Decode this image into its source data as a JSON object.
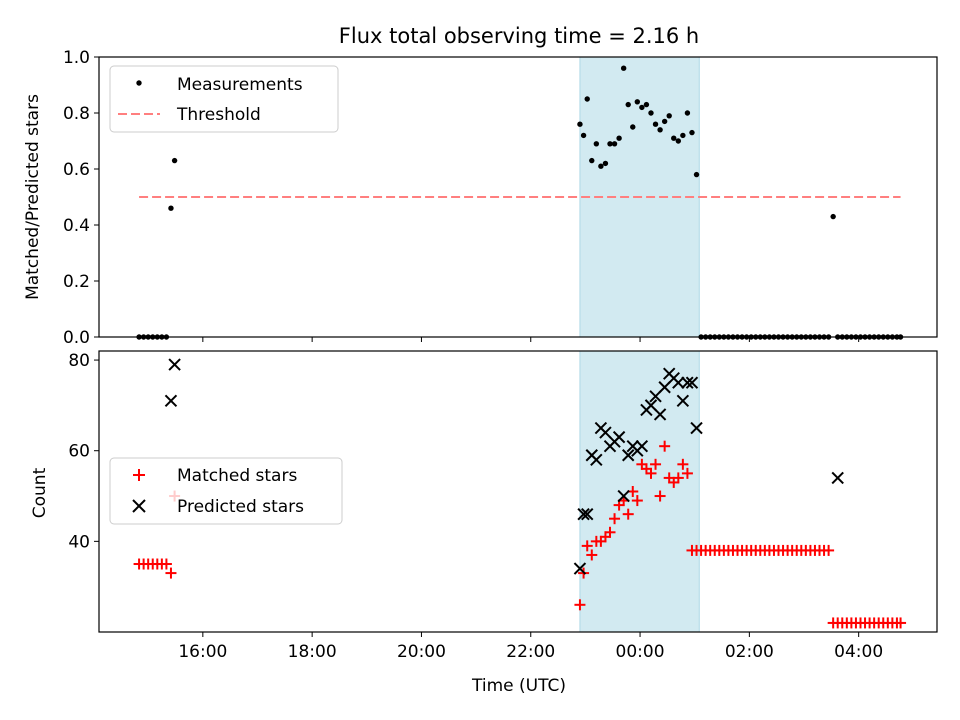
{
  "figure": {
    "title": "Flux total observing time = 2.16 h"
  },
  "colors": {
    "measurement": "#000000",
    "threshold": "#ff7f7f",
    "matched": "#ff0000",
    "predicted": "#000000",
    "shade": "#add8e6"
  },
  "chart_data": [
    {
      "type": "scatter",
      "panel": "top",
      "title": "Flux total observing time = 2.16 h",
      "xlabel": "",
      "ylabel": "Matched/Predicted stars",
      "xlim": [
        "14:06",
        "05:26"
      ],
      "ylim": [
        0,
        1.0
      ],
      "y_ticks": [
        "0.0",
        "0.2",
        "0.4",
        "0.6",
        "0.8",
        "1.0"
      ],
      "shaded_span": [
        "22:54",
        "01:05"
      ],
      "legend_position": "upper-left",
      "legend": [
        "Measurements",
        "Threshold"
      ],
      "threshold": {
        "name": "Threshold",
        "y": 0.5,
        "x_range": [
          "14:50",
          "04:46"
        ],
        "style": "dashed"
      },
      "series": [
        {
          "name": "Measurements",
          "marker": "dot",
          "x": [
            "14:50",
            "14:55",
            "15:00",
            "15:05",
            "15:10",
            "15:15",
            "15:20",
            "15:25",
            "15:29",
            "22:54",
            "22:58",
            "23:02",
            "23:07",
            "23:12",
            "23:17",
            "23:22",
            "23:27",
            "23:32",
            "23:37",
            "23:42",
            "23:47",
            "23:52",
            "23:57",
            "24:02",
            "24:07",
            "24:12",
            "24:17",
            "24:22",
            "24:27",
            "24:32",
            "24:37",
            "24:42",
            "24:47",
            "24:52",
            "24:57",
            "25:02",
            "25:07",
            "25:12",
            "25:17",
            "25:22",
            "25:27",
            "25:32",
            "25:37",
            "25:42",
            "25:47",
            "25:52",
            "25:57",
            "26:02",
            "26:07",
            "26:12",
            "26:17",
            "26:22",
            "26:27",
            "26:32",
            "26:37",
            "26:42",
            "26:47",
            "26:52",
            "26:57",
            "27:02",
            "27:07",
            "27:12",
            "27:17",
            "27:22",
            "27:27",
            "27:32",
            "27:37",
            "27:42",
            "27:47",
            "27:52",
            "27:57",
            "28:02",
            "28:07",
            "28:12",
            "28:17",
            "28:22",
            "28:27",
            "28:32",
            "28:37",
            "28:42",
            "28:46"
          ],
          "y": [
            0,
            0,
            0,
            0,
            0,
            0,
            0,
            0.46,
            0.63,
            0.76,
            0.72,
            0.85,
            0.63,
            0.69,
            0.61,
            0.62,
            0.69,
            0.69,
            0.71,
            0.96,
            0.83,
            0.75,
            0.84,
            0.82,
            0.83,
            0.8,
            0.76,
            0.74,
            0.77,
            0.79,
            0.71,
            0.7,
            0.72,
            0.8,
            0.73,
            0.58,
            0,
            0,
            0,
            0,
            0,
            0,
            0,
            0,
            0,
            0,
            0,
            0,
            0,
            0,
            0,
            0,
            0,
            0,
            0,
            0,
            0,
            0,
            0,
            0,
            0,
            0,
            0,
            0,
            0,
            0.43,
            0,
            0,
            0,
            0,
            0,
            0,
            0,
            0,
            0,
            0,
            0,
            0,
            0,
            0,
            0
          ]
        }
      ]
    },
    {
      "type": "scatter",
      "panel": "bottom",
      "xlabel": "Time (UTC)",
      "ylabel": "Count",
      "xlim": [
        "14:06",
        "05:26"
      ],
      "ylim": [
        20,
        82
      ],
      "x_ticks": [
        "16:00",
        "18:00",
        "20:00",
        "22:00",
        "00:00",
        "02:00",
        "04:00"
      ],
      "y_ticks": [
        "40",
        "60",
        "80"
      ],
      "shaded_span": [
        "22:54",
        "01:05"
      ],
      "legend_position": "center-left",
      "legend": [
        "Matched stars",
        "Predicted stars"
      ],
      "series": [
        {
          "name": "Matched stars",
          "marker": "plus",
          "x": [
            "14:50",
            "14:55",
            "15:00",
            "15:05",
            "15:10",
            "15:15",
            "15:20",
            "15:25",
            "15:29",
            "22:54",
            "22:58",
            "23:02",
            "23:07",
            "23:12",
            "23:17",
            "23:22",
            "23:27",
            "23:32",
            "23:37",
            "23:42",
            "23:47",
            "23:52",
            "23:57",
            "24:02",
            "24:07",
            "24:12",
            "24:17",
            "24:22",
            "24:27",
            "24:32",
            "24:37",
            "24:42",
            "24:47",
            "24:52",
            "24:57",
            "25:02",
            "25:07",
            "25:12",
            "25:17",
            "25:22",
            "25:27",
            "25:32",
            "25:37",
            "25:42",
            "25:47",
            "25:52",
            "25:57",
            "26:02",
            "26:07",
            "26:12",
            "26:17",
            "26:22",
            "26:27",
            "26:32",
            "26:37",
            "26:42",
            "26:47",
            "26:52",
            "26:57",
            "27:02",
            "27:07",
            "27:12",
            "27:17",
            "27:22",
            "27:27",
            "27:32",
            "27:37",
            "27:42",
            "27:47",
            "27:52",
            "27:57",
            "28:02",
            "28:07",
            "28:12",
            "28:17",
            "28:22",
            "28:27",
            "28:32",
            "28:37",
            "28:42",
            "28:46"
          ],
          "y": [
            35,
            35,
            35,
            35,
            35,
            35,
            35,
            33,
            50,
            26,
            33,
            39,
            37,
            40,
            40,
            41,
            42,
            45,
            48,
            49,
            46,
            51,
            49,
            57,
            56,
            55,
            57,
            50,
            61,
            54,
            53,
            54,
            57,
            55,
            38,
            38,
            38,
            38,
            38,
            38,
            38,
            38,
            38,
            38,
            38,
            38,
            38,
            38,
            38,
            38,
            38,
            38,
            38,
            38,
            38,
            38,
            38,
            38,
            38,
            38,
            38,
            38,
            38,
            38,
            38,
            22,
            22,
            22,
            22,
            22,
            22,
            22,
            22,
            22,
            22,
            22,
            22,
            22,
            22,
            22,
            22
          ]
        },
        {
          "name": "Predicted stars",
          "marker": "x",
          "x": [
            "15:25",
            "15:29",
            "22:54",
            "22:58",
            "23:02",
            "23:07",
            "23:12",
            "23:17",
            "23:22",
            "23:27",
            "23:32",
            "23:37",
            "23:42",
            "23:47",
            "23:52",
            "23:57",
            "24:02",
            "24:07",
            "24:12",
            "24:17",
            "24:22",
            "24:27",
            "24:32",
            "24:37",
            "24:42",
            "24:47",
            "24:52",
            "24:57",
            "25:02",
            "27:37"
          ],
          "y": [
            71,
            79,
            34,
            46,
            46,
            59,
            58,
            65,
            64,
            61,
            62,
            63,
            50,
            59,
            61,
            60,
            61,
            69,
            70,
            72,
            68,
            74,
            77,
            76,
            75,
            71,
            75,
            75,
            65,
            54
          ]
        }
      ]
    }
  ]
}
